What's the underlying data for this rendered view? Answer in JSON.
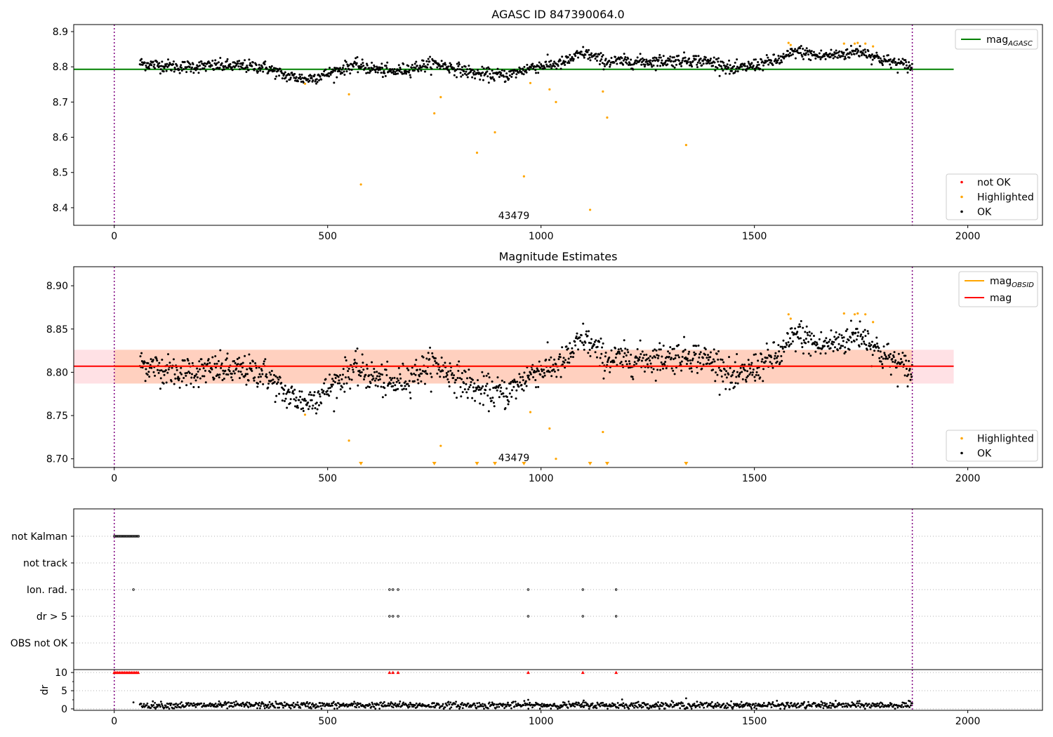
{
  "chart_data": [
    {
      "panel": "top",
      "type": "scatter",
      "title": "AGASC ID 847390064.0",
      "xlim": [
        -95,
        2175
      ],
      "ylim": [
        8.35,
        8.92
      ],
      "xticks": [
        0,
        500,
        1000,
        1500,
        2000
      ],
      "yticks": [
        8.4,
        8.5,
        8.6,
        8.7,
        8.8,
        8.9
      ],
      "vlines": [
        0,
        1870
      ],
      "annotation": {
        "text": "43479",
        "x": 935,
        "y": 8.37
      },
      "reference_line": {
        "name": "mag",
        "sub": "AGASC",
        "value": 8.793,
        "x": [
          -95,
          1967
        ],
        "color": "#008000"
      },
      "legend_top_right": [
        {
          "label": "mag",
          "sub": "AGASC",
          "kind": "line",
          "color": "#008000"
        }
      ],
      "legend_bottom_right": [
        {
          "label": "not OK",
          "kind": "marker",
          "color": "#ff0000"
        },
        {
          "label": "Highlighted",
          "kind": "marker",
          "color": "#ffa500"
        },
        {
          "label": "OK",
          "kind": "marker",
          "color": "#000000"
        }
      ],
      "series": [
        {
          "name": "Highlighted",
          "color": "#ffa500",
          "points": [
            [
              447,
              8.752
            ],
            [
              550,
              8.722
            ],
            [
              578,
              8.466
            ],
            [
              750,
              8.668
            ],
            [
              765,
              8.714
            ],
            [
              850,
              8.556
            ],
            [
              892,
              8.614
            ],
            [
              960,
              8.489
            ],
            [
              975,
              8.754
            ],
            [
              1020,
              8.736
            ],
            [
              1035,
              8.7
            ],
            [
              1115,
              8.394
            ],
            [
              1145,
              8.73
            ],
            [
              1155,
              8.656
            ],
            [
              1340,
              8.578
            ],
            [
              1580,
              8.868
            ],
            [
              1585,
              8.862
            ],
            [
              1710,
              8.866
            ],
            [
              1735,
              8.866
            ],
            [
              1742,
              8.868
            ],
            [
              1760,
              8.866
            ],
            [
              1778,
              8.858
            ]
          ]
        }
      ]
    },
    {
      "panel": "middle",
      "type": "scatter",
      "title": "Magnitude Estimates",
      "xlim": [
        -95,
        2175
      ],
      "ylim": [
        8.69,
        8.922
      ],
      "xticks": [
        0,
        500,
        1000,
        1500,
        2000
      ],
      "yticks": [
        8.7,
        8.75,
        8.8,
        8.85,
        8.9
      ],
      "vlines": [
        0,
        1870
      ],
      "annotation": {
        "text": "43479",
        "x": 935,
        "y": 8.695
      },
      "mag_line": {
        "value": 8.807,
        "band": [
          8.787,
          8.826
        ],
        "x": [
          -95,
          1967
        ],
        "color": "#ff0000"
      },
      "mag_obsid": {
        "value": 8.807,
        "band": [
          8.787,
          8.826
        ],
        "x": [
          0,
          1870
        ],
        "color": "#ffa500"
      },
      "legend_top_right": [
        {
          "label": "mag",
          "sub": "OBSID",
          "kind": "line",
          "color": "#ffa500"
        },
        {
          "label": "mag",
          "sub": "",
          "kind": "line",
          "color": "#ff0000"
        }
      ],
      "legend_bottom_right": [
        {
          "label": "Highlighted",
          "kind": "marker",
          "color": "#ffa500"
        },
        {
          "label": "OK",
          "kind": "marker",
          "color": "#000000"
        }
      ],
      "series": [
        {
          "name": "Highlighted",
          "color": "#ffa500",
          "points": [
            [
              447,
              8.751
            ],
            [
              550,
              8.721
            ],
            [
              765,
              8.715
            ],
            [
              975,
              8.754
            ],
            [
              1020,
              8.735
            ],
            [
              1035,
              8.7
            ],
            [
              1145,
              8.731
            ],
            [
              1580,
              8.867
            ],
            [
              1585,
              8.862
            ],
            [
              1710,
              8.868
            ],
            [
              1735,
              8.867
            ],
            [
              1742,
              8.868
            ],
            [
              1760,
              8.867
            ],
            [
              1778,
              8.858
            ]
          ]
        }
      ],
      "lower_limit_markers_x": [
        578,
        750,
        850,
        892,
        960,
        1115,
        1155,
        1340
      ]
    },
    {
      "panel": "flags",
      "type": "scatter",
      "xlim": [
        -95,
        2175
      ],
      "categories": [
        "not Kalman",
        "not track",
        "Ion. rad.",
        "dr > 5",
        "OBS not OK"
      ],
      "vlines": [
        0,
        1870
      ],
      "flags": {
        "not Kalman": [
          [
            0,
            58
          ]
        ],
        "not track": [],
        "Ion. rad.": [
          [
            45,
            45
          ],
          [
            645,
            645
          ],
          [
            653,
            653
          ],
          [
            665,
            665
          ],
          [
            970,
            970
          ],
          [
            1098,
            1098
          ],
          [
            1176,
            1176
          ]
        ],
        "dr > 5": [
          [
            645,
            645
          ],
          [
            653,
            653
          ],
          [
            665,
            665
          ],
          [
            970,
            970
          ],
          [
            1098,
            1098
          ],
          [
            1176,
            1176
          ]
        ],
        "OBS not OK": []
      }
    },
    {
      "panel": "dr",
      "type": "scatter",
      "ylabel": "dr",
      "xlim": [
        -95,
        2175
      ],
      "ylim": [
        -0.4,
        10.8
      ],
      "xticks": [
        0,
        500,
        1000,
        1500,
        2000
      ],
      "yticks": [
        0,
        5,
        10
      ],
      "vlines": [
        0,
        1870
      ],
      "clipped_markers_x": [
        0,
        4,
        8,
        12,
        16,
        20,
        24,
        28,
        32,
        36,
        40,
        44,
        48,
        52,
        56,
        645,
        653,
        665,
        970,
        1098,
        1176
      ],
      "outliers": [
        [
          45,
          1.8
        ],
        [
          1340,
          2.9
        ],
        [
          1190,
          2.6
        ],
        [
          1100,
          2.3
        ],
        [
          970,
          2.5
        ]
      ]
    }
  ]
}
